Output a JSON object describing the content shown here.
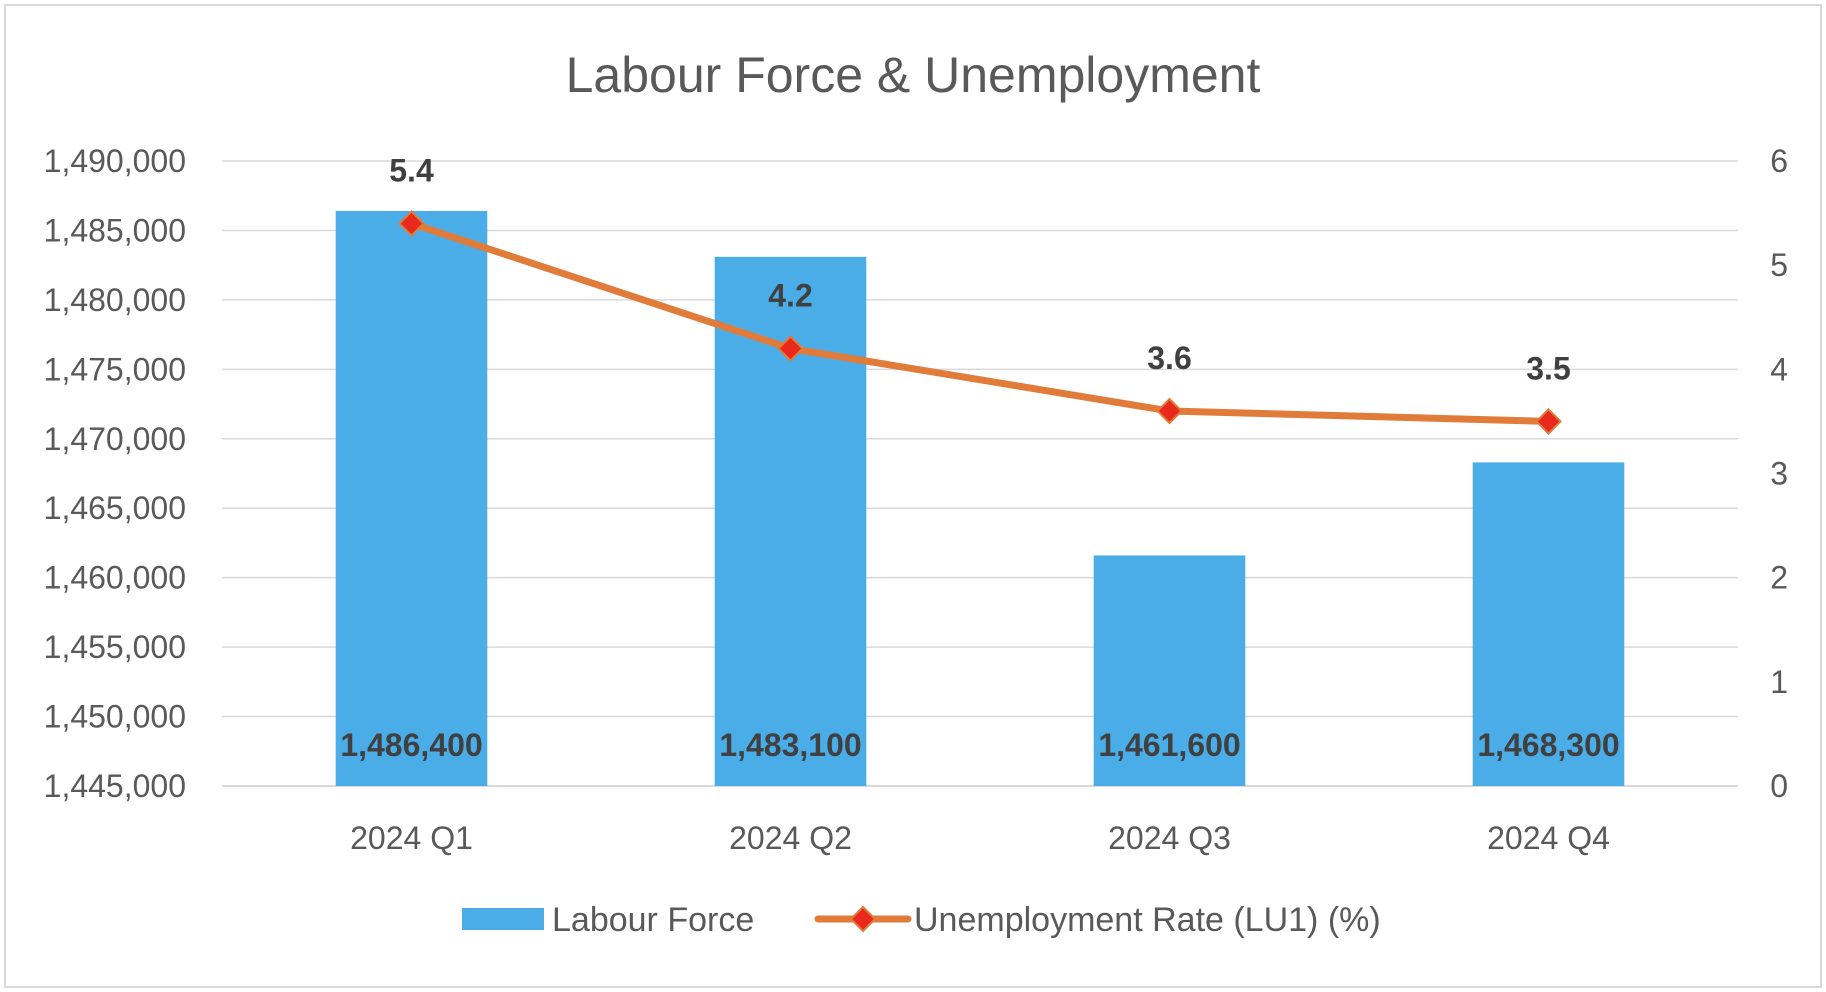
{
  "chart_data": {
    "type": "bar",
    "title": "Labour Force & Unemployment",
    "categories": [
      "2024 Q1",
      "2024 Q2",
      "2024 Q3",
      "2024 Q4"
    ],
    "series": [
      {
        "name": "Labour Force",
        "type": "bar",
        "axis": "left",
        "color": "#4BADE8",
        "values": [
          1486400,
          1483100,
          1461600,
          1468300
        ],
        "labels": [
          "1,486,400",
          "1,483,100",
          "1,461,600",
          "1,468,300"
        ]
      },
      {
        "name": "Unemployment Rate (LU1) (%)",
        "type": "line",
        "axis": "right",
        "color": "#E07B39",
        "marker": "diamond",
        "marker_color": "#E8291C",
        "values": [
          5.4,
          4.2,
          3.6,
          3.5
        ],
        "labels": [
          "5.4",
          "4.2",
          "3.6",
          "3.5"
        ]
      }
    ],
    "y_left": {
      "lim": [
        1445000,
        1490000
      ],
      "ticks": [
        1445000,
        1450000,
        1455000,
        1460000,
        1465000,
        1470000,
        1475000,
        1480000,
        1485000,
        1490000
      ],
      "tick_labels": [
        "1,445,000",
        "1,450,000",
        "1,455,000",
        "1,460,000",
        "1,465,000",
        "1,470,000",
        "1,475,000",
        "1,480,000",
        "1,485,000",
        "1,490,000"
      ]
    },
    "y_right": {
      "lim": [
        0,
        6
      ],
      "ticks": [
        0,
        1,
        2,
        3,
        4,
        5,
        6
      ],
      "tick_labels": [
        "0",
        "1",
        "2",
        "3",
        "4",
        "5",
        "6"
      ]
    },
    "grid": true,
    "legend": "bottom",
    "colors": {
      "grid": "#D9D9D9",
      "text": "#595959",
      "label": "#404040",
      "title": "#595959",
      "frame": "#D9D9D9"
    }
  }
}
